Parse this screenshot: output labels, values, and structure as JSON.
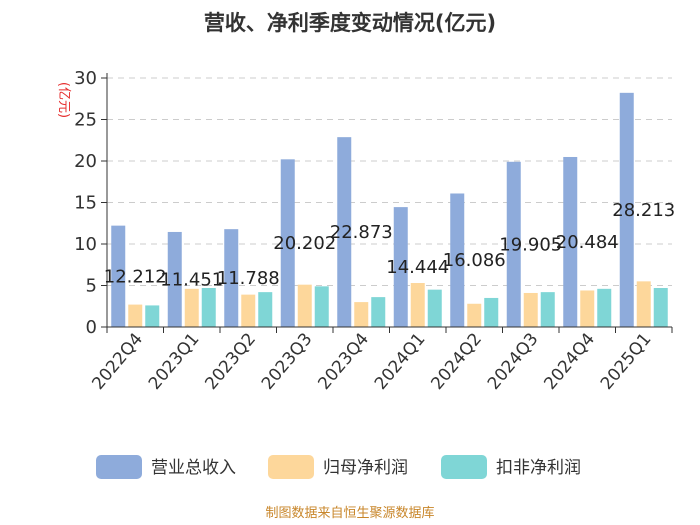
{
  "title": "营收、净利季度变动情况(亿元)",
  "source": "制图数据来自恒生聚源数据库",
  "chart_data": {
    "type": "bar",
    "ylabel": "(亿元)",
    "ylim": [
      0,
      30
    ],
    "yticks": [
      0,
      5,
      10,
      15,
      20,
      25,
      30
    ],
    "grid": true,
    "legend_position": "bottom",
    "categories": [
      "2022Q4",
      "2023Q1",
      "2023Q2",
      "2023Q3",
      "2023Q4",
      "2024Q1",
      "2024Q2",
      "2024Q3",
      "2024Q4",
      "2025Q1"
    ],
    "series": [
      {
        "name": "营业总收入",
        "color": "#8eabdb",
        "values": [
          12.212,
          11.451,
          11.788,
          20.202,
          22.873,
          14.444,
          16.086,
          19.905,
          20.484,
          28.213
        ],
        "labels": [
          "12.212",
          "11.451",
          "11.788",
          "20.202",
          "22.873",
          "14.444",
          "16.086",
          "19.905",
          "20.484",
          "28.213"
        ]
      },
      {
        "name": "归母净利润",
        "color": "#fdd79b",
        "values": [
          2.7,
          4.6,
          3.9,
          5.1,
          3.0,
          5.3,
          2.8,
          4.1,
          4.4,
          5.5
        ]
      },
      {
        "name": "扣非净利润",
        "color": "#7fd6d6",
        "values": [
          2.6,
          4.7,
          4.2,
          4.9,
          3.6,
          4.5,
          3.5,
          4.2,
          4.6,
          4.7
        ]
      }
    ]
  }
}
